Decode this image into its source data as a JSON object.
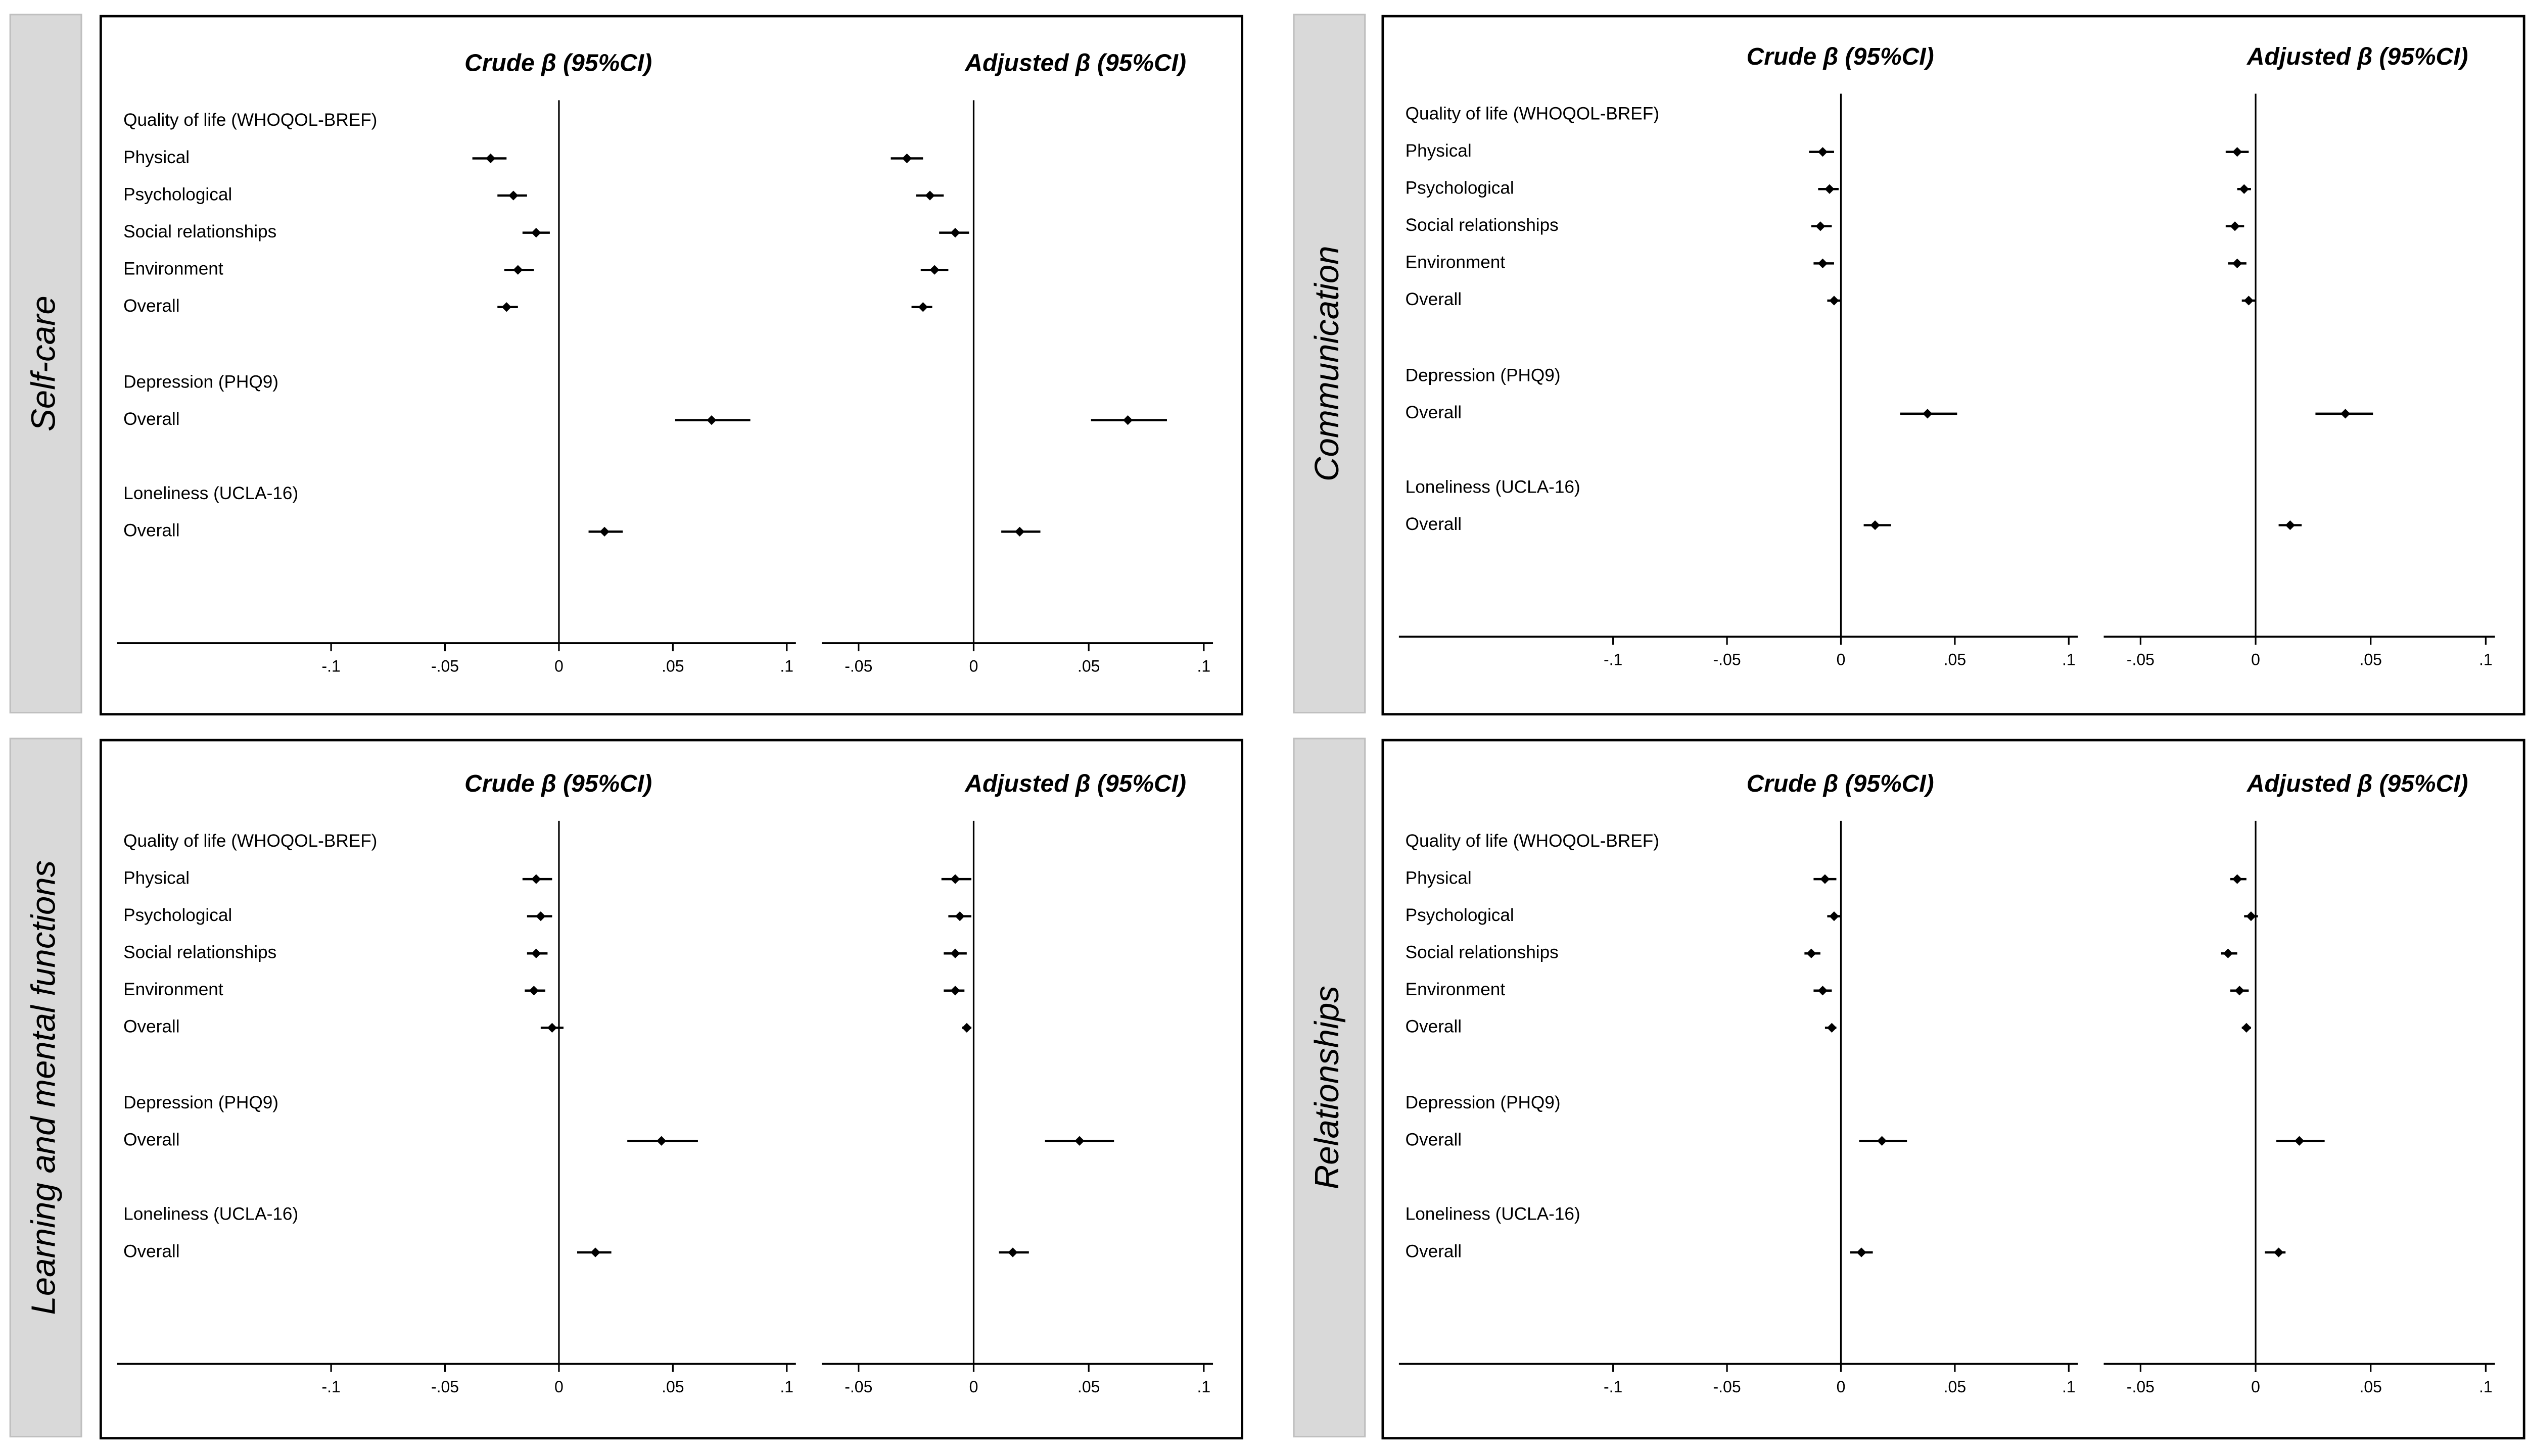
{
  "chart_data": [
    {
      "type": "forest",
      "title": "Self-care",
      "categories": [
        "Quality of life (WHOQOL-BREF)",
        "Physical",
        "Psychological",
        "Social relationships",
        "Environment",
        "Overall",
        "Depression (PHQ9)",
        "Overall",
        "Loneliness (UCLA-16)",
        "Overall"
      ],
      "panels": [
        {
          "title": "Crude β (95%CI)",
          "xlim": [
            -0.194,
            0.104
          ],
          "refline": 0,
          "xticks": [
            {
              "value": -0.1,
              "label": "-.1"
            },
            {
              "value": -0.05,
              "label": "-.05"
            },
            0,
            {
              "value": 0.05,
              "label": ".05"
            },
            {
              "value": 0.1,
              "label": ".1"
            }
          ],
          "values": [
            null,
            -0.03,
            -0.02,
            -0.01,
            -0.018,
            -0.023,
            null,
            0.067,
            null,
            0.02
          ],
          "ci_low": [
            null,
            -0.038,
            -0.027,
            -0.016,
            -0.024,
            -0.027,
            null,
            0.051,
            null,
            0.013
          ],
          "ci_high": [
            null,
            -0.023,
            -0.014,
            -0.004,
            -0.011,
            -0.018,
            null,
            0.084,
            null,
            0.028
          ]
        },
        {
          "title": "Adjusted β (95%CI)",
          "xlim": [
            -0.066,
            0.104
          ],
          "refline": 0,
          "xticks": [
            {
              "value": -0.05,
              "label": "-.05"
            },
            0,
            {
              "value": 0.05,
              "label": ".05"
            },
            {
              "value": 0.1,
              "label": ".1"
            }
          ],
          "values": [
            null,
            -0.029,
            -0.019,
            -0.008,
            -0.017,
            -0.022,
            null,
            0.067,
            null,
            0.02
          ],
          "ci_low": [
            null,
            -0.036,
            -0.025,
            -0.015,
            -0.023,
            -0.027,
            null,
            0.051,
            null,
            0.012
          ],
          "ci_high": [
            null,
            -0.022,
            -0.013,
            -0.002,
            -0.011,
            -0.018,
            null,
            0.084,
            null,
            0.029
          ]
        }
      ]
    },
    {
      "type": "forest",
      "title": "Communication",
      "categories": [
        "Quality of life (WHOQOL-BREF)",
        "Physical",
        "Psychological",
        "Social relationships",
        "Environment",
        "Overall",
        "Depression (PHQ9)",
        "Overall",
        "Loneliness (UCLA-16)",
        "Overall"
      ],
      "panels": [
        {
          "title": "Crude β (95%CI)",
          "xlim": [
            -0.194,
            0.104
          ],
          "refline": 0,
          "xticks": [
            {
              "value": -0.1,
              "label": "-.1"
            },
            {
              "value": -0.05,
              "label": "-.05"
            },
            0,
            {
              "value": 0.05,
              "label": ".05"
            },
            {
              "value": 0.1,
              "label": ".1"
            }
          ],
          "values": [
            null,
            -0.008,
            -0.005,
            -0.009,
            -0.008,
            -0.003,
            null,
            0.038,
            null,
            0.015
          ],
          "ci_low": [
            null,
            -0.014,
            -0.01,
            -0.013,
            -0.012,
            -0.006,
            null,
            0.026,
            null,
            0.01
          ],
          "ci_high": [
            null,
            -0.003,
            -0.001,
            -0.004,
            -0.003,
            0.0,
            null,
            0.051,
            null,
            0.022
          ]
        },
        {
          "title": "Adjusted β (95%CI)",
          "xlim": [
            -0.066,
            0.104
          ],
          "refline": 0,
          "xticks": [
            {
              "value": -0.05,
              "label": "-.05"
            },
            0,
            {
              "value": 0.05,
              "label": ".05"
            },
            {
              "value": 0.1,
              "label": ".1"
            }
          ],
          "values": [
            null,
            -0.008,
            -0.005,
            -0.009,
            -0.008,
            -0.003,
            null,
            0.039,
            null,
            0.015
          ],
          "ci_low": [
            null,
            -0.013,
            -0.008,
            -0.013,
            -0.012,
            -0.006,
            null,
            0.026,
            null,
            0.01
          ],
          "ci_high": [
            null,
            -0.003,
            -0.002,
            -0.005,
            -0.004,
            0.0,
            null,
            0.051,
            null,
            0.02
          ]
        }
      ]
    },
    {
      "type": "forest",
      "title": "Learning and mental functions",
      "categories": [
        "Quality of life (WHOQOL-BREF)",
        "Physical",
        "Psychological",
        "Social relationships",
        "Environment",
        "Overall",
        "Depression (PHQ9)",
        "Overall",
        "Loneliness (UCLA-16)",
        "Overall"
      ],
      "panels": [
        {
          "title": "Crude β (95%CI)",
          "xlim": [
            -0.194,
            0.104
          ],
          "refline": 0,
          "xticks": [
            {
              "value": -0.1,
              "label": "-.1"
            },
            {
              "value": -0.05,
              "label": "-.05"
            },
            0,
            {
              "value": 0.05,
              "label": ".05"
            },
            {
              "value": 0.1,
              "label": ".1"
            }
          ],
          "values": [
            null,
            -0.01,
            -0.008,
            -0.01,
            -0.011,
            -0.003,
            null,
            0.045,
            null,
            0.016
          ],
          "ci_low": [
            null,
            -0.016,
            -0.014,
            -0.014,
            -0.015,
            -0.008,
            null,
            0.03,
            null,
            0.008
          ],
          "ci_high": [
            null,
            -0.003,
            -0.003,
            -0.005,
            -0.006,
            0.002,
            null,
            0.061,
            null,
            0.023
          ]
        },
        {
          "title": "Adjusted β (95%CI)",
          "xlim": [
            -0.066,
            0.104
          ],
          "refline": 0,
          "xticks": [
            {
              "value": -0.05,
              "label": "-.05"
            },
            0,
            {
              "value": 0.05,
              "label": ".05"
            },
            {
              "value": 0.1,
              "label": ".1"
            }
          ],
          "values": [
            null,
            -0.008,
            -0.006,
            -0.008,
            -0.008,
            -0.003,
            null,
            0.046,
            null,
            0.017
          ],
          "ci_low": [
            null,
            -0.014,
            -0.011,
            -0.013,
            -0.013,
            -0.005,
            null,
            0.031,
            null,
            0.011
          ],
          "ci_high": [
            null,
            -0.001,
            -0.001,
            -0.003,
            -0.004,
            -0.001,
            null,
            0.061,
            null,
            0.024
          ]
        }
      ]
    },
    {
      "type": "forest",
      "title": "Relationships",
      "categories": [
        "Quality of life (WHOQOL-BREF)",
        "Physical",
        "Psychological",
        "Social relationships",
        "Environment",
        "Overall",
        "Depression (PHQ9)",
        "Overall",
        "Loneliness (UCLA-16)",
        "Overall"
      ],
      "panels": [
        {
          "title": "Crude β (95%CI)",
          "xlim": [
            -0.194,
            0.104
          ],
          "refline": 0,
          "xticks": [
            {
              "value": -0.1,
              "label": "-.1"
            },
            {
              "value": -0.05,
              "label": "-.05"
            },
            0,
            {
              "value": 0.05,
              "label": ".05"
            },
            {
              "value": 0.1,
              "label": ".1"
            }
          ],
          "values": [
            null,
            -0.007,
            -0.003,
            -0.013,
            -0.008,
            -0.004,
            null,
            0.018,
            null,
            0.009
          ],
          "ci_low": [
            null,
            -0.012,
            -0.006,
            -0.016,
            -0.012,
            -0.007,
            null,
            0.008,
            null,
            0.004
          ],
          "ci_high": [
            null,
            -0.002,
            0.0,
            -0.009,
            -0.004,
            -0.002,
            null,
            0.029,
            null,
            0.014
          ]
        },
        {
          "title": "Adjusted β (95%CI)",
          "xlim": [
            -0.066,
            0.104
          ],
          "refline": 0,
          "xticks": [
            {
              "value": -0.05,
              "label": "-.05"
            },
            0,
            {
              "value": 0.05,
              "label": ".05"
            },
            {
              "value": 0.1,
              "label": ".1"
            }
          ],
          "values": [
            null,
            -0.008,
            -0.002,
            -0.012,
            -0.007,
            -0.004,
            null,
            0.019,
            null,
            0.01
          ],
          "ci_low": [
            null,
            -0.011,
            -0.005,
            -0.015,
            -0.011,
            -0.006,
            null,
            0.009,
            null,
            0.004
          ],
          "ci_high": [
            null,
            -0.004,
            0.001,
            -0.008,
            -0.003,
            -0.002,
            null,
            0.03,
            null,
            0.013
          ]
        }
      ]
    }
  ]
}
